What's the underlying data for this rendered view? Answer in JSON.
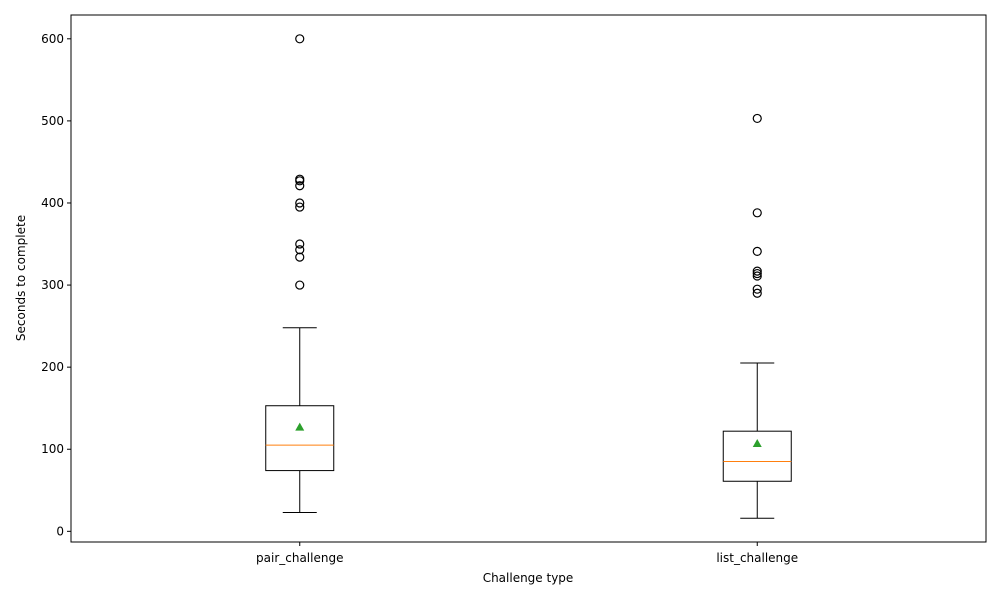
{
  "chart_data": {
    "type": "box",
    "title": "",
    "xlabel": "Challenge type",
    "ylabel": "Seconds to complete",
    "ylim": [
      -13,
      629
    ],
    "yticks": [
      0,
      100,
      200,
      300,
      400,
      500,
      600
    ],
    "grid": false,
    "legend": "none",
    "categories": [
      "pair_challenge",
      "list_challenge"
    ],
    "boxes": [
      {
        "category": "pair_challenge",
        "whisker_low": 23,
        "q1": 74,
        "median": 105,
        "q3": 153,
        "whisker_high": 248,
        "mean": 127,
        "outliers": [
          300,
          334,
          343,
          350,
          395,
          400,
          421,
          427,
          429,
          600
        ]
      },
      {
        "category": "list_challenge",
        "whisker_low": 16,
        "q1": 61,
        "median": 85,
        "q3": 122,
        "whisker_high": 205,
        "mean": 107,
        "outliers": [
          290,
          295,
          311,
          314,
          317,
          341,
          388,
          503
        ]
      }
    ],
    "colors": {
      "box": "#000000",
      "median": "#ff7f0e",
      "mean": "#2ca02c",
      "outlier": "#000000"
    }
  }
}
